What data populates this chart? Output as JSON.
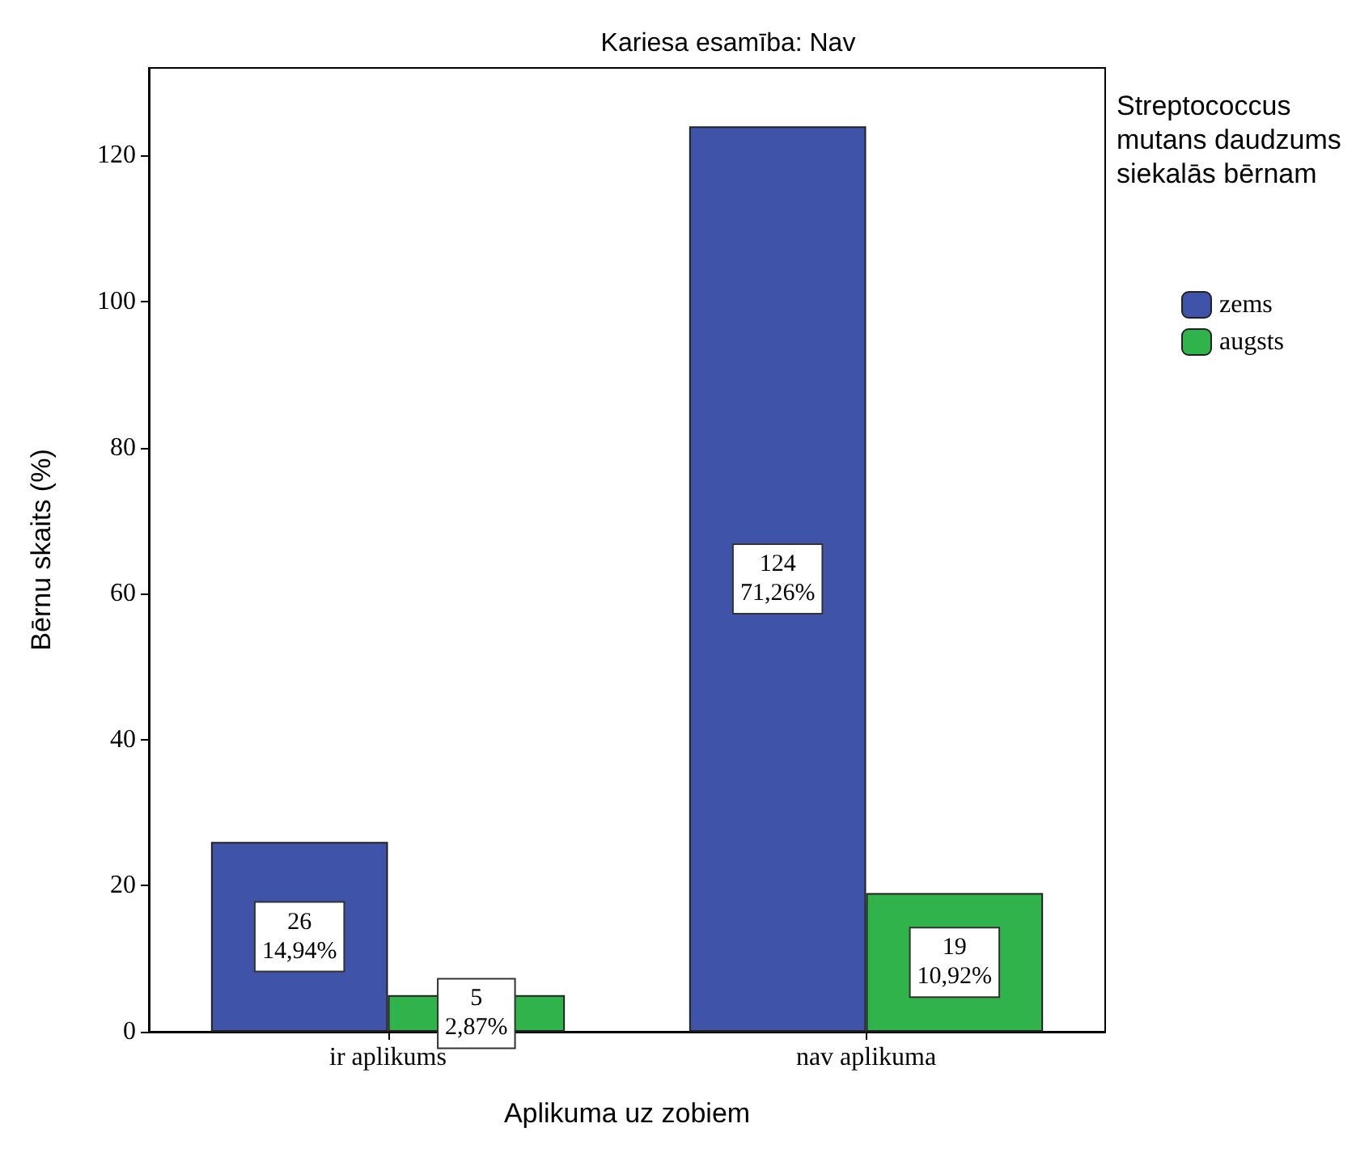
{
  "chart_data": {
    "type": "bar",
    "title": "Kariesa esamība: Nav",
    "xlabel": "Aplikuma uz zobiem",
    "ylabel": "Bērnu skaits (%)",
    "legend_title": "Streptococcus mutans daudzums siekalās bērnam",
    "categories": [
      "ir aplikums",
      "nav aplikuma"
    ],
    "series": [
      {
        "name": "zems",
        "color": "#3f54a8",
        "values": [
          26,
          124
        ],
        "value_labels": [
          "26\n14,94%",
          "124\n71,26%"
        ]
      },
      {
        "name": "augsts",
        "color": "#2fb34a",
        "values": [
          5,
          19
        ],
        "value_labels": [
          "5\n2,87%",
          "19\n10,92%"
        ]
      }
    ],
    "ylim": [
      0,
      132
    ],
    "yticks": [
      0,
      20,
      40,
      60,
      80,
      100,
      120
    ],
    "grid": false,
    "legend": "right"
  }
}
